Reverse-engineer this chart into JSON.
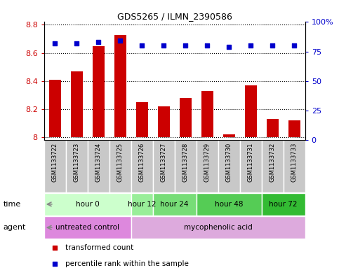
{
  "title": "GDS5265 / ILMN_2390586",
  "samples": [
    "GSM1133722",
    "GSM1133723",
    "GSM1133724",
    "GSM1133725",
    "GSM1133726",
    "GSM1133727",
    "GSM1133728",
    "GSM1133729",
    "GSM1133730",
    "GSM1133731",
    "GSM1133732",
    "GSM1133733"
  ],
  "bar_values": [
    8.41,
    8.47,
    8.65,
    8.73,
    8.25,
    8.22,
    8.28,
    8.33,
    8.02,
    8.37,
    8.13,
    8.12
  ],
  "percentile_values": [
    82,
    82,
    83,
    84,
    80,
    80,
    80,
    80,
    79,
    80,
    80,
    80
  ],
  "ylim_left": [
    7.98,
    8.82
  ],
  "ylim_right": [
    0,
    100
  ],
  "yticks_left": [
    8.0,
    8.2,
    8.4,
    8.6,
    8.8
  ],
  "ytick_labels_left": [
    "8",
    "8.2",
    "8.4",
    "8.6",
    "8.8"
  ],
  "yticks_right": [
    0,
    25,
    50,
    75,
    100
  ],
  "ytick_labels_right": [
    "0",
    "25",
    "50",
    "75",
    "100%"
  ],
  "bar_color": "#cc0000",
  "percentile_color": "#0000cc",
  "bar_bottom": 8.0,
  "time_groups": [
    {
      "label": "hour 0",
      "indices": [
        0,
        1,
        2,
        3
      ],
      "color": "#ccffcc"
    },
    {
      "label": "hour 12",
      "indices": [
        4
      ],
      "color": "#99ee99"
    },
    {
      "label": "hour 24",
      "indices": [
        5,
        6
      ],
      "color": "#77dd77"
    },
    {
      "label": "hour 48",
      "indices": [
        7,
        8,
        9
      ],
      "color": "#55cc55"
    },
    {
      "label": "hour 72",
      "indices": [
        10,
        11
      ],
      "color": "#33bb33"
    }
  ],
  "agent_groups": [
    {
      "label": "untreated control",
      "indices": [
        0,
        1,
        2,
        3
      ],
      "color": "#dd88dd"
    },
    {
      "label": "mycophenolic acid",
      "indices": [
        4,
        5,
        6,
        7,
        8,
        9,
        10,
        11
      ],
      "color": "#ddaadd"
    }
  ],
  "legend_items": [
    {
      "label": "transformed count",
      "color": "#cc0000",
      "marker": "s"
    },
    {
      "label": "percentile rank within the sample",
      "color": "#0000cc",
      "marker": "s"
    }
  ],
  "grid_color": "black",
  "sample_bg_color": "#c8c8c8",
  "bar_width": 0.55,
  "n_samples": 12
}
